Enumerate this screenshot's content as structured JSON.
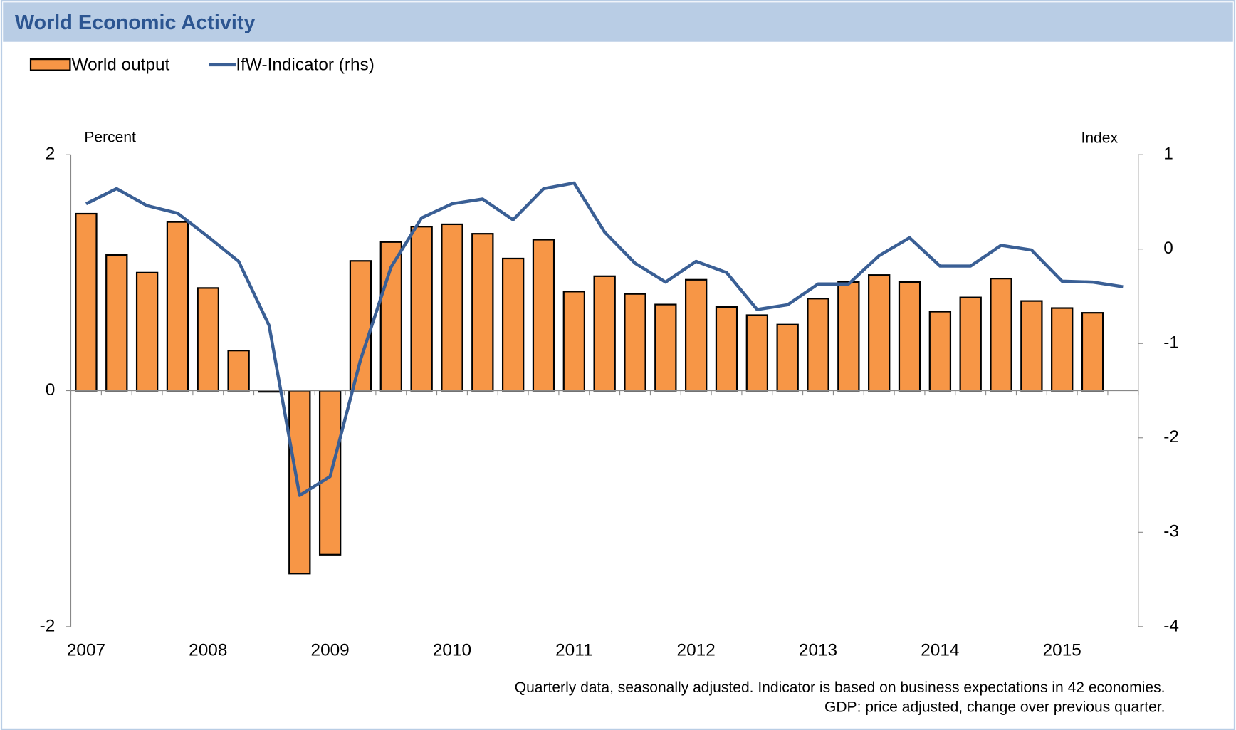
{
  "chart_data": {
    "type": "bar_line",
    "title": "World Economic Activity",
    "ylabel": "Percent",
    "y2label": "Index",
    "notes": [
      "Quarterly data, seasonally adjusted. Indicator is based on business expectations  in 42 economies.",
      "GDP: price adjusted, change over previous quarter."
    ],
    "categories": [
      "2007",
      null,
      null,
      null,
      "2008",
      null,
      null,
      null,
      "2009",
      null,
      null,
      null,
      "2010",
      null,
      null,
      null,
      "2011",
      null,
      null,
      null,
      "2012",
      null,
      null,
      null,
      "2013",
      null,
      null,
      null,
      "2014",
      null,
      null,
      null,
      "2015",
      null,
      null
    ],
    "series": [
      {
        "name": "World output",
        "color": "#f79646",
        "type": "bar",
        "values": [
          1.5,
          1.15,
          1.0,
          1.43,
          0.87,
          0.34,
          -0.01,
          -1.55,
          -1.39,
          1.1,
          1.26,
          1.39,
          1.41,
          1.33,
          1.12,
          1.28,
          0.84,
          0.97,
          0.82,
          0.73,
          0.94,
          0.71,
          0.64,
          0.56,
          0.78,
          0.92,
          0.98,
          0.92,
          0.67,
          0.79,
          0.95,
          0.76,
          0.7,
          0.66,
          null
        ]
      },
      {
        "name": "IfW-Indicator (rhs)",
        "color": "#3a5f95",
        "type": "line",
        "axis": "y2",
        "values": [
          0.48,
          0.64,
          0.46,
          0.38,
          0.13,
          -0.13,
          -0.81,
          -2.61,
          -2.41,
          -1.17,
          -0.19,
          0.33,
          0.48,
          0.53,
          0.31,
          0.64,
          0.7,
          0.18,
          -0.15,
          -0.35,
          -0.13,
          -0.25,
          -0.64,
          -0.59,
          -0.37,
          -0.37,
          -0.07,
          0.12,
          -0.18,
          -0.18,
          0.04,
          -0.01,
          -0.34,
          -0.35,
          -0.4
        ]
      }
    ],
    "ylim": [
      -2,
      2
    ],
    "yticks": [
      -2,
      0,
      2
    ],
    "y2lim": [
      -4,
      1
    ],
    "y2ticks": [
      -4,
      -3,
      -2,
      -1,
      0,
      1
    ]
  }
}
